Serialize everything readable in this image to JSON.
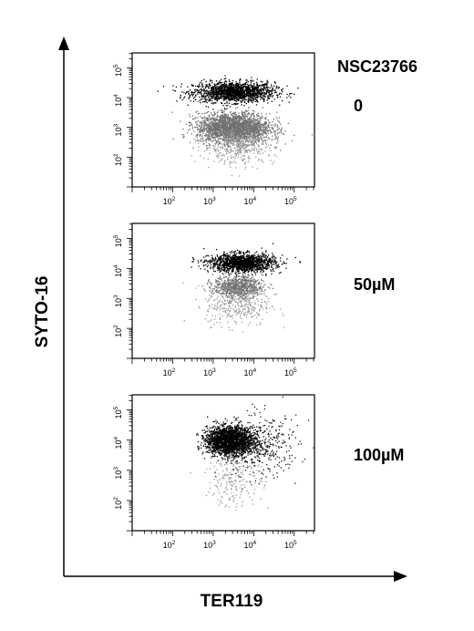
{
  "figure": {
    "compound_label": "NSC23766",
    "x_axis_label": "TER119",
    "y_axis_label": "SYTO-16"
  },
  "chart_data": [
    {
      "type": "scatter",
      "panel_label": "0",
      "x_scale": "log",
      "y_scale": "log",
      "x_ticks": [
        "2",
        "3",
        "4",
        "5"
      ],
      "y_ticks": [
        "2",
        "3",
        "4",
        "5"
      ],
      "xlim": [
        10,
        316228
      ],
      "ylim": [
        10,
        316228
      ],
      "series": [
        {
          "cluster": "dark",
          "color": "#000000",
          "center": [
            3162,
            15849
          ],
          "spread": [
            0.5,
            0.17
          ],
          "count": 1600
        },
        {
          "cluster": "grey",
          "color": "#707070",
          "center": [
            3162,
            1000
          ],
          "spread": [
            0.45,
            0.25
          ],
          "count": 2400
        },
        {
          "cluster": "light",
          "color": "#9a9a9a",
          "center": [
            3981,
            251
          ],
          "spread": [
            0.45,
            0.3
          ],
          "count": 450
        }
      ]
    },
    {
      "type": "scatter",
      "panel_label": "50µM",
      "x_scale": "log",
      "y_scale": "log",
      "x_ticks": [
        "2",
        "3",
        "4",
        "5"
      ],
      "y_ticks": [
        "2",
        "3",
        "4",
        "5"
      ],
      "xlim": [
        10,
        316228
      ],
      "ylim": [
        10,
        316228
      ],
      "series": [
        {
          "cluster": "dark",
          "color": "#000000",
          "center": [
            5012,
            15849
          ],
          "spread": [
            0.4,
            0.15
          ],
          "count": 1500
        },
        {
          "cluster": "grey",
          "color": "#707070",
          "center": [
            3981,
            2512
          ],
          "spread": [
            0.3,
            0.18
          ],
          "count": 800
        },
        {
          "cluster": "light",
          "color": "#9a9a9a",
          "center": [
            3981,
            631
          ],
          "spread": [
            0.4,
            0.35
          ],
          "count": 350
        }
      ]
    },
    {
      "type": "scatter",
      "panel_label": "100µM",
      "x_scale": "log",
      "y_scale": "log",
      "x_ticks": [
        "2",
        "3",
        "4",
        "5"
      ],
      "y_ticks": [
        "2",
        "3",
        "4",
        "5"
      ],
      "xlim": [
        10,
        316228
      ],
      "ylim": [
        10,
        316228
      ],
      "series": [
        {
          "cluster": "dark",
          "color": "#000000",
          "center": [
            2512,
            10000
          ],
          "spread": [
            0.28,
            0.22
          ],
          "count": 2600
        },
        {
          "cluster": "sparse",
          "color": "#1a1a1a",
          "center": [
            12589,
            6310
          ],
          "spread": [
            0.5,
            0.5
          ],
          "count": 450
        },
        {
          "cluster": "light",
          "color": "#9a9a9a",
          "center": [
            3162,
            631
          ],
          "spread": [
            0.35,
            0.5
          ],
          "count": 220
        }
      ]
    }
  ]
}
